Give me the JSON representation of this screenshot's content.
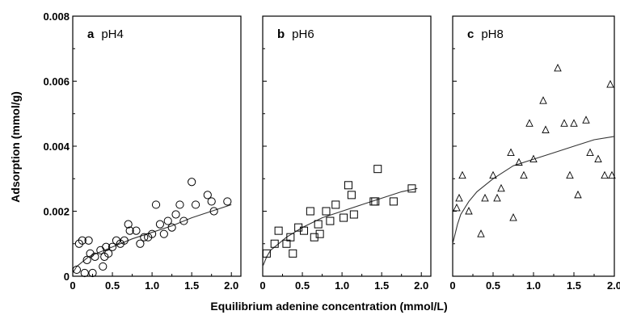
{
  "figure": {
    "ylabel": "Adsorption (mmol/g)",
    "xlabel": "Equilibrium adenine concentration (mmol/L)"
  },
  "chart_data": [
    {
      "type": "scatter",
      "panel_letter": "a",
      "panel_label": "pH4",
      "marker": "circle",
      "xlim": [
        0,
        2.0
      ],
      "ylim": [
        0,
        0.008
      ],
      "x_ticks": [
        "0",
        "0.5",
        "1.0",
        "1.5",
        "2.0"
      ],
      "y_ticks": [
        "0",
        "0.002",
        "0.004",
        "0.006",
        "0.008"
      ],
      "points": [
        [
          0.05,
          0.0002
        ],
        [
          0.08,
          0.001
        ],
        [
          0.12,
          0.0011
        ],
        [
          0.15,
          0.0001
        ],
        [
          0.18,
          0.0005
        ],
        [
          0.2,
          0.0011
        ],
        [
          0.22,
          0.0007
        ],
        [
          0.25,
          0.0001
        ],
        [
          0.28,
          0.0006
        ],
        [
          0.35,
          0.0008
        ],
        [
          0.38,
          0.0003
        ],
        [
          0.4,
          0.0006
        ],
        [
          0.42,
          0.0009
        ],
        [
          0.45,
          0.0007
        ],
        [
          0.5,
          0.0009
        ],
        [
          0.55,
          0.0011
        ],
        [
          0.6,
          0.001
        ],
        [
          0.65,
          0.0011
        ],
        [
          0.7,
          0.0016
        ],
        [
          0.72,
          0.0014
        ],
        [
          0.8,
          0.0014
        ],
        [
          0.85,
          0.001
        ],
        [
          0.9,
          0.0012
        ],
        [
          0.95,
          0.0012
        ],
        [
          1.0,
          0.0013
        ],
        [
          1.05,
          0.0022
        ],
        [
          1.1,
          0.0016
        ],
        [
          1.15,
          0.0013
        ],
        [
          1.2,
          0.0017
        ],
        [
          1.25,
          0.0015
        ],
        [
          1.3,
          0.0019
        ],
        [
          1.35,
          0.0022
        ],
        [
          1.4,
          0.0017
        ],
        [
          1.5,
          0.0029
        ],
        [
          1.55,
          0.0022
        ],
        [
          1.7,
          0.0025
        ],
        [
          1.75,
          0.0023
        ],
        [
          1.78,
          0.002
        ],
        [
          1.95,
          0.0023
        ]
      ],
      "fit_curve": [
        [
          0.0,
          0.0001
        ],
        [
          0.05,
          0.0003
        ],
        [
          0.1,
          0.0004
        ],
        [
          0.2,
          0.0006
        ],
        [
          0.3,
          0.0007
        ],
        [
          0.5,
          0.0009
        ],
        [
          0.75,
          0.00115
        ],
        [
          1.0,
          0.00135
        ],
        [
          1.25,
          0.00155
        ],
        [
          1.5,
          0.0018
        ],
        [
          1.75,
          0.002
        ],
        [
          2.0,
          0.0022
        ]
      ]
    },
    {
      "type": "scatter",
      "panel_letter": "b",
      "panel_label": "pH6",
      "marker": "square",
      "xlim": [
        0,
        2.0
      ],
      "ylim": [
        0,
        0.008
      ],
      "x_ticks": [
        "0",
        "0.5",
        "1.0",
        "1.5",
        "2.0"
      ],
      "y_ticks": [],
      "points": [
        [
          0.05,
          0.0007
        ],
        [
          0.15,
          0.001
        ],
        [
          0.2,
          0.0014
        ],
        [
          0.3,
          0.001
        ],
        [
          0.35,
          0.0012
        ],
        [
          0.38,
          0.0007
        ],
        [
          0.45,
          0.0015
        ],
        [
          0.52,
          0.0014
        ],
        [
          0.6,
          0.002
        ],
        [
          0.65,
          0.0012
        ],
        [
          0.7,
          0.0016
        ],
        [
          0.72,
          0.0013
        ],
        [
          0.8,
          0.002
        ],
        [
          0.85,
          0.0017
        ],
        [
          0.92,
          0.0022
        ],
        [
          1.02,
          0.0018
        ],
        [
          1.08,
          0.0028
        ],
        [
          1.12,
          0.0025
        ],
        [
          1.15,
          0.0019
        ],
        [
          1.4,
          0.0023
        ],
        [
          1.42,
          0.0023
        ],
        [
          1.45,
          0.0033
        ],
        [
          1.65,
          0.0023
        ],
        [
          1.88,
          0.0027
        ]
      ],
      "fit_curve": [
        [
          0.0,
          0.0003
        ],
        [
          0.05,
          0.0006
        ],
        [
          0.1,
          0.0008
        ],
        [
          0.2,
          0.001
        ],
        [
          0.3,
          0.0012
        ],
        [
          0.5,
          0.0015
        ],
        [
          0.75,
          0.0018
        ],
        [
          1.0,
          0.002
        ],
        [
          1.25,
          0.0022
        ],
        [
          1.5,
          0.0024
        ],
        [
          1.75,
          0.0026
        ],
        [
          1.95,
          0.0027
        ]
      ]
    },
    {
      "type": "scatter",
      "panel_letter": "c",
      "panel_label": "pH8",
      "marker": "triangle",
      "xlim": [
        0,
        2.0
      ],
      "ylim": [
        0,
        0.008
      ],
      "x_ticks": [
        "0",
        "0.5",
        "1.0",
        "1.5",
        "2.0"
      ],
      "y_ticks": [],
      "points": [
        [
          0.05,
          0.0021
        ],
        [
          0.08,
          0.0024
        ],
        [
          0.12,
          0.0031
        ],
        [
          0.2,
          0.002
        ],
        [
          0.35,
          0.0013
        ],
        [
          0.4,
          0.0024
        ],
        [
          0.5,
          0.0031
        ],
        [
          0.55,
          0.0024
        ],
        [
          0.6,
          0.0027
        ],
        [
          0.72,
          0.0038
        ],
        [
          0.75,
          0.0018
        ],
        [
          0.82,
          0.0035
        ],
        [
          0.88,
          0.0031
        ],
        [
          0.95,
          0.0047
        ],
        [
          1.0,
          0.0036
        ],
        [
          1.12,
          0.0054
        ],
        [
          1.15,
          0.0045
        ],
        [
          1.3,
          0.0064
        ],
        [
          1.38,
          0.0047
        ],
        [
          1.45,
          0.0031
        ],
        [
          1.5,
          0.0047
        ],
        [
          1.55,
          0.0025
        ],
        [
          1.65,
          0.0048
        ],
        [
          1.7,
          0.0038
        ],
        [
          1.8,
          0.0036
        ],
        [
          1.88,
          0.0031
        ],
        [
          1.95,
          0.0059
        ],
        [
          1.97,
          0.0031
        ]
      ],
      "fit_curve": [
        [
          0.0,
          0.001
        ],
        [
          0.03,
          0.0013
        ],
        [
          0.06,
          0.0016
        ],
        [
          0.1,
          0.0019
        ],
        [
          0.2,
          0.0023
        ],
        [
          0.3,
          0.0026
        ],
        [
          0.5,
          0.003
        ],
        [
          0.75,
          0.0034
        ],
        [
          1.0,
          0.0036
        ],
        [
          1.25,
          0.0038
        ],
        [
          1.5,
          0.004
        ],
        [
          1.75,
          0.0042
        ],
        [
          2.0,
          0.0043
        ]
      ]
    }
  ]
}
